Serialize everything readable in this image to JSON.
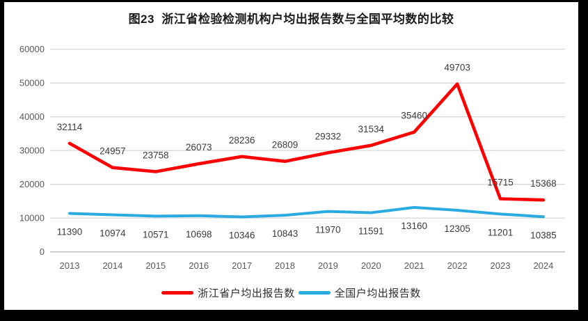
{
  "chart_data": {
    "type": "line",
    "title": "图23  浙江省检验检测机构户均出报告数与全国平均数的比较",
    "categories": [
      "2013",
      "2014",
      "2015",
      "2016",
      "2017",
      "2018",
      "2019",
      "2020",
      "2021",
      "2022",
      "2023",
      "2024"
    ],
    "series": [
      {
        "name": "浙江省户均出报告数",
        "color": "#FF0000",
        "values": [
          32114,
          24957,
          23758,
          26073,
          28236,
          26809,
          29332,
          31534,
          35460,
          49703,
          15715,
          15368
        ]
      },
      {
        "name": "全国户均出报告数",
        "color": "#29ABE2",
        "values": [
          11390,
          10974,
          10571,
          10698,
          10346,
          10843,
          11970,
          11591,
          13160,
          12305,
          11201,
          10385
        ]
      }
    ],
    "yticks": [
      0,
      10000,
      20000,
      30000,
      40000,
      50000,
      60000
    ],
    "ylim": [
      0,
      60000
    ],
    "xlabel": "",
    "ylabel": "",
    "grid": true,
    "data_labels": true,
    "legend_position": "bottom",
    "colors": {
      "gridline": "#d9d9d9",
      "baseline": "#c3c3c3",
      "tick_text": "#595959",
      "data_label_text": "#3b3b3b",
      "title_text": "#1a1a1a",
      "page_background": "#ffffff",
      "scan_border": "#000000"
    }
  }
}
